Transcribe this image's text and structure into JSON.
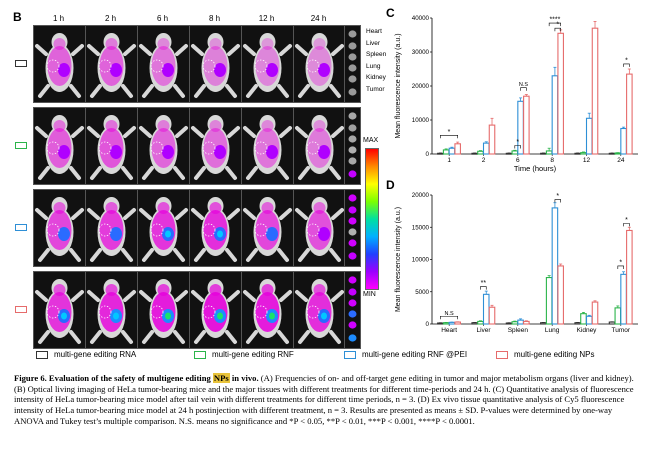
{
  "panel_b": {
    "letter": "B",
    "time_points": [
      "1 h",
      "2 h",
      "6 h",
      "8 h",
      "12 h",
      "24 h"
    ],
    "tissue_names": [
      "Heart",
      "Liver",
      "Spleen",
      "Lung",
      "Kidney",
      "Tumor"
    ],
    "colorbar": {
      "max_label": "MAX",
      "min_label": "MIN"
    },
    "row_colors": [
      "#333333",
      "#2bb44a",
      "#2e8fd6",
      "#e66b6b"
    ]
  },
  "panel_c": {
    "letter": "C",
    "chart_data": {
      "type": "bar",
      "categories": [
        "1",
        "2",
        "6",
        "8",
        "12",
        "24"
      ],
      "xlabel": "Time (hours)",
      "ylabel": "Mean fluorescence intensity (a.u.)",
      "ylim": [
        0,
        40000
      ],
      "yticks": [
        "0",
        "10000",
        "20000",
        "30000",
        "40000"
      ],
      "series": [
        {
          "name": "multi-gene editing RNA",
          "color": "#333333",
          "values": [
            200,
            200,
            200,
            200,
            200,
            200
          ],
          "errors": [
            100,
            100,
            100,
            100,
            100,
            100
          ]
        },
        {
          "name": "multi-gene editing RNF",
          "color": "#2bb44a",
          "values": [
            1200,
            800,
            900,
            900,
            400,
            300
          ],
          "errors": [
            300,
            200,
            200,
            800,
            200,
            100
          ]
        },
        {
          "name": "multi-gene editing RNF @PEI",
          "color": "#2e8fd6",
          "values": [
            1700,
            3200,
            15500,
            23000,
            10500,
            7500
          ],
          "errors": [
            300,
            400,
            1000,
            2500,
            1500,
            400
          ]
        },
        {
          "name": "multi-gene editing NPs",
          "color": "#e66b6b",
          "values": [
            3000,
            8500,
            17000,
            35500,
            37000,
            23500
          ],
          "errors": [
            500,
            2000,
            500,
            1000,
            2000,
            1500
          ]
        }
      ],
      "annotations": [
        "*",
        "*",
        "N.S",
        "****",
        "*",
        "*"
      ]
    }
  },
  "panel_d": {
    "letter": "D",
    "chart_data": {
      "type": "bar",
      "categories": [
        "Heart",
        "Liver",
        "Spleen",
        "Lung",
        "Kidney",
        "Tumor"
      ],
      "xlabel": "",
      "ylabel": "Mean fluorescence intensity (a.u.)",
      "ylim": [
        0,
        20000
      ],
      "yticks": [
        "0",
        "5000",
        "10000",
        "15000",
        "20000"
      ],
      "series": [
        {
          "name": "multi-gene editing RNA",
          "color": "#333333",
          "values": [
            150,
            200,
            150,
            200,
            200,
            300
          ],
          "errors": [
            50,
            50,
            50,
            50,
            50,
            50
          ]
        },
        {
          "name": "multi-gene editing RNF",
          "color": "#2bb44a",
          "values": [
            200,
            400,
            350,
            7200,
            1600,
            2500
          ],
          "errors": [
            50,
            100,
            100,
            300,
            200,
            300
          ]
        },
        {
          "name": "multi-gene editing RNF @PEI",
          "color": "#2e8fd6",
          "values": [
            250,
            4600,
            600,
            18000,
            1200,
            7700
          ],
          "errors": [
            50,
            500,
            200,
            800,
            150,
            400
          ]
        },
        {
          "name": "multi-gene editing NPs",
          "color": "#e66b6b",
          "values": [
            300,
            2600,
            400,
            9000,
            3400,
            14500
          ],
          "errors": [
            50,
            300,
            100,
            300,
            200,
            500
          ]
        }
      ],
      "annotations": [
        "N.S",
        "**",
        "*",
        "*",
        "*"
      ]
    }
  },
  "legend": [
    {
      "label": "multi-gene editing RNA",
      "color": "#333333"
    },
    {
      "label": "multi-gene editing RNF",
      "color": "#2bb44a"
    },
    {
      "label": "multi-gene editing RNF @PEI",
      "color": "#2e8fd6"
    },
    {
      "label": "multi-gene editing NPs",
      "color": "#e66b6b"
    }
  ],
  "caption": {
    "lead_1": "Figure 6. Evaluation of the safety of multigene editing ",
    "highlight": "NPs",
    "lead_2": " in vivo.",
    "body": "(A) Frequencies of on- and off-target gene editing in tumor and major metabolism organs (liver and kidney). (B) Optical living imaging of HeLa tumor-bearing mice and the major tissues with different treatments for different time-periods and 24 h. (C) Quantitative analysis of fluorescence intensity of HeLa tumor-bearing mice model after tail vein with different treatments for different time periods, n = 3. (D) Ex vivo tissue quantitative analysis of Cy5 fluorescence intensity of HeLa tumor-bearing mice model at 24 h postinjection with different treatment, n = 3. Results are presented as means ± SD. P-values were determined by one-way ANOVA and Tukey test’s multiple comparison. N.S. means no significance and *P < 0.05, **P < 0.01, ***P < 0.001, ****P < 0.0001."
  }
}
